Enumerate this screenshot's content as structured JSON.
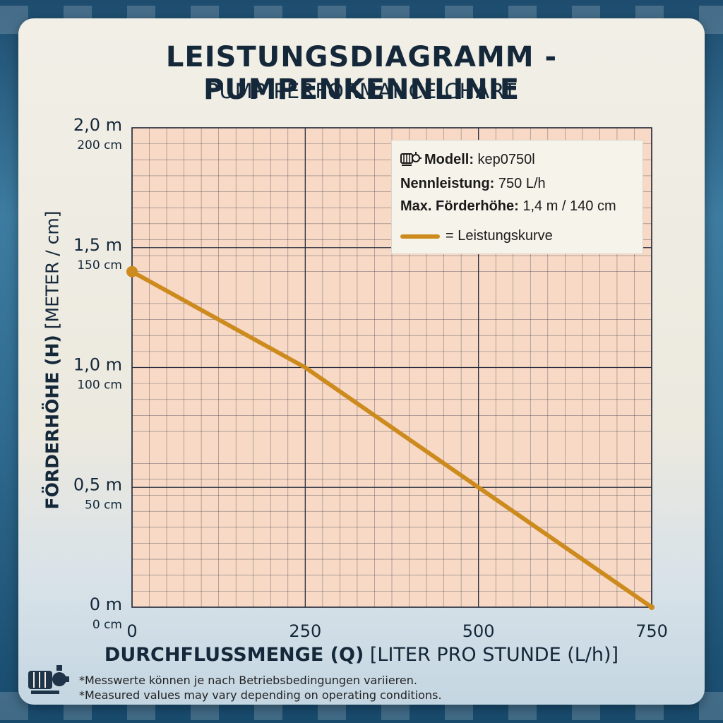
{
  "header": {
    "title": "LEISTUNGSDIAGRAMM - PUMPENKENNLINIE",
    "subtitle": "PUMP PERFORMANCE CHART"
  },
  "axes": {
    "y_label_bold": "FÖRDERHÖHE (H)",
    "y_label_rest": " [METER / cm]",
    "x_label_bold": "DURCHFLUSSMENGE (Q)",
    "x_label_rest": " [LITER PRO STUNDE (L/h)]"
  },
  "legend": {
    "model_label": "Modell:",
    "model_value": " kep0750l",
    "rated_label": "Nennleistung:",
    "rated_value": " 750 L/h",
    "max_head_label": "Max. Förderhöhe:",
    "max_head_value": " 1,4 m / 140 cm",
    "curve_label": "= Leistungskurve"
  },
  "footnotes": {
    "de": "*Messwerte können je nach Betriebsbedingungen variieren.",
    "en": "*Measured values may vary depending on operating conditions."
  },
  "colors": {
    "grid_fill": "#f7d9c6",
    "grid_line": "#2b3040",
    "curve": "#cd8b1e",
    "text": "#14283a"
  },
  "chart_data": {
    "type": "line",
    "xlim": [
      0,
      750
    ],
    "ylim": [
      0,
      2.0
    ],
    "x_ticks": [
      {
        "value": 0,
        "label": "0"
      },
      {
        "value": 250,
        "label": "250"
      },
      {
        "value": 500,
        "label": "500"
      },
      {
        "value": 750,
        "label": "750"
      }
    ],
    "y_ticks": [
      {
        "value": 0,
        "label": "0 m",
        "sublabel": "0 cm"
      },
      {
        "value": 0.5,
        "label": "0,5 m",
        "sublabel": "50 cm"
      },
      {
        "value": 1.0,
        "label": "1,0 m",
        "sublabel": "100 cm"
      },
      {
        "value": 1.5,
        "label": "1,5 m",
        "sublabel": "150 cm"
      },
      {
        "value": 2.0,
        "label": "2,0 m",
        "sublabel": "200 cm"
      }
    ],
    "grid": true,
    "legend_position": "top-right",
    "series": [
      {
        "name": "Leistungskurve",
        "x": [
          0,
          250,
          500,
          750
        ],
        "y": [
          1.4,
          1.0,
          0.5,
          0.0
        ]
      }
    ]
  }
}
